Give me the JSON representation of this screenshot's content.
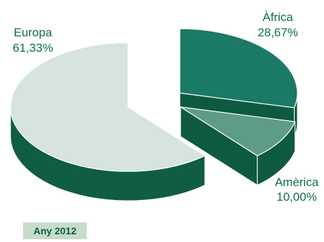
{
  "chart_data": {
    "type": "pie",
    "style": "3d-exploded",
    "categories": [
      "Àfrica",
      "Amèrica",
      "Europa"
    ],
    "values": [
      28.67,
      10.0,
      61.33
    ],
    "value_labels": [
      "28,67%",
      "10,00%",
      "61,33%"
    ],
    "colors": {
      "Àfrica": {
        "top": "#1a7a66",
        "side": "#0e5a40"
      },
      "Amèrica": {
        "top": "#5f9c85",
        "side": "#0e5a40"
      },
      "Europa": {
        "top": "#d6e3df",
        "side": "#0f5d42"
      }
    },
    "label_color": "#0f6b52",
    "year_label": "Any 2012",
    "year_badge_color": "#c5dcc9"
  }
}
